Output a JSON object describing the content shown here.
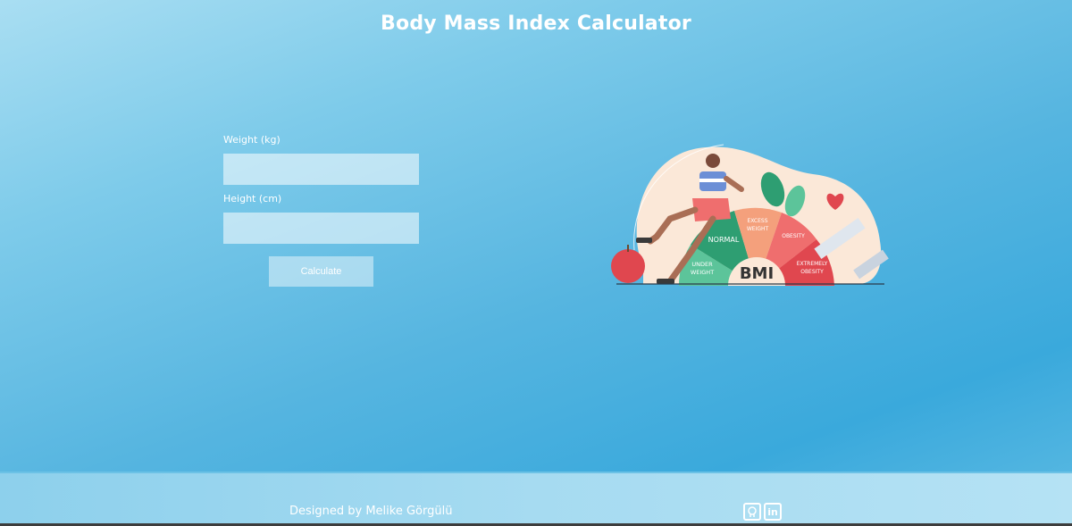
{
  "header": {
    "title": "Body Mass Index Calculator"
  },
  "form": {
    "weight_label": "Weight (kg)",
    "weight_value": "",
    "height_label": "Height (cm)",
    "height_value": "",
    "calculate_label": "Calculate"
  },
  "illustration": {
    "labels": {
      "underweight_1": "UNDER",
      "underweight_2": "WEIGHT",
      "normal": "NORMAL",
      "excess_1": "EXCESS",
      "excess_2": "WEIGHT",
      "obesity": "OBESITY",
      "extreme_1": "EXTREMELY",
      "extreme_2": "OBESITY",
      "bmi": "BMI"
    }
  },
  "footer": {
    "credit": "Designed by Melike Görgülü",
    "social": [
      {
        "icon": "github-icon"
      },
      {
        "icon": "linkedin-icon",
        "text": "in"
      }
    ]
  },
  "colors": {
    "underweight": "#5cc49a",
    "normal": "#2e9e72",
    "excess": "#f4a07c",
    "obesity": "#ef6e6e",
    "extreme": "#e0474f",
    "blob": "#fbe8d8"
  }
}
